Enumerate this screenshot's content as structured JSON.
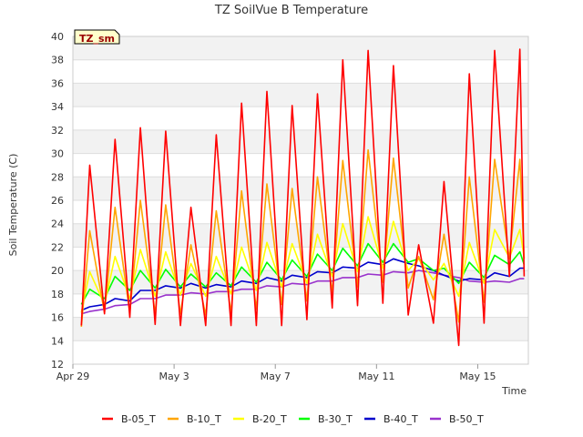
{
  "chart_data": {
    "type": "line",
    "title": "TZ SoilVue B Temperature",
    "xlabel": "Time",
    "ylabel": "Soil Temperature (C)",
    "badge": "TZ_sm",
    "ylim": [
      12,
      40
    ],
    "yticks": [
      12,
      14,
      16,
      18,
      20,
      22,
      24,
      26,
      28,
      30,
      32,
      34,
      36,
      38,
      40
    ],
    "xlim": [
      "2024-04-29",
      "2024-05-17"
    ],
    "xticks": [
      {
        "date": "2024-04-29",
        "label": "Apr 29"
      },
      {
        "date": "2024-05-03",
        "label": "May 3"
      },
      {
        "date": "2024-05-07",
        "label": "May 7"
      },
      {
        "date": "2024-05-11",
        "label": "May 11"
      },
      {
        "date": "2024-05-15",
        "label": "May 15"
      }
    ],
    "x": [
      "Apr 29 08:00",
      "Apr 29 16:00",
      "Apr 30 06:00",
      "Apr 30 16:00",
      "May 1 06:00",
      "May 1 16:00",
      "May 2 06:00",
      "May 2 16:00",
      "May 3 06:00",
      "May 3 16:00",
      "May 4 06:00",
      "May 4 16:00",
      "May 5 06:00",
      "May 5 16:00",
      "May 6 06:00",
      "May 6 16:00",
      "May 7 06:00",
      "May 7 16:00",
      "May 8 06:00",
      "May 8 16:00",
      "May 9 06:00",
      "May 9 16:00",
      "May 10 06:00",
      "May 10 16:00",
      "May 11 06:00",
      "May 11 16:00",
      "May 12 06:00",
      "May 12 16:00",
      "May 13 06:00",
      "May 13 16:00",
      "May 14 06:00",
      "May 14 16:00",
      "May 15 06:00",
      "May 15 16:00",
      "May 16 06:00",
      "May 16 16:00",
      "May 16 20:00"
    ],
    "series": [
      {
        "name": "B-05_T",
        "color": "#ff0000",
        "values": [
          15.3,
          29.0,
          16.3,
          31.2,
          16.0,
          32.2,
          15.4,
          31.9,
          15.3,
          25.4,
          15.3,
          31.6,
          15.3,
          34.3,
          15.3,
          35.3,
          15.3,
          34.1,
          15.8,
          35.1,
          16.8,
          38.0,
          17.0,
          38.8,
          17.2,
          37.5,
          16.2,
          22.2,
          15.5,
          27.6,
          13.6,
          36.8,
          15.5,
          38.8,
          19.5,
          38.9,
          19.5
        ]
      },
      {
        "name": "B-10_T",
        "color": "#ffa500",
        "values": [
          15.2,
          23.4,
          16.4,
          25.4,
          16.4,
          26.0,
          16.3,
          25.6,
          16.3,
          22.2,
          16.2,
          25.1,
          16.4,
          26.8,
          16.7,
          27.4,
          17.1,
          27.0,
          17.4,
          28.0,
          18.1,
          29.4,
          18.6,
          30.3,
          19.0,
          29.6,
          18.5,
          21.2,
          17.5,
          23.1,
          15.6,
          28.0,
          17.3,
          29.5,
          21.0,
          29.5,
          21.0
        ]
      },
      {
        "name": "B-20_T",
        "color": "#ffff00",
        "values": [
          16.4,
          19.9,
          17.1,
          21.2,
          17.6,
          21.8,
          17.8,
          21.6,
          17.9,
          20.6,
          17.8,
          21.2,
          18.0,
          22.0,
          18.3,
          22.4,
          18.6,
          22.3,
          18.9,
          23.1,
          19.5,
          24.0,
          19.9,
          24.6,
          20.2,
          24.2,
          20.0,
          21.0,
          19.2,
          20.6,
          17.8,
          22.4,
          18.9,
          23.5,
          21.1,
          23.5,
          21.1
        ]
      },
      {
        "name": "B-30_T",
        "color": "#00ff00",
        "values": [
          17.1,
          18.4,
          17.6,
          19.5,
          18.3,
          20.0,
          18.5,
          20.1,
          18.6,
          19.7,
          18.6,
          19.8,
          18.7,
          20.3,
          19.0,
          20.7,
          19.2,
          20.9,
          19.5,
          21.4,
          20.0,
          21.9,
          20.4,
          22.3,
          20.7,
          22.3,
          20.7,
          21.0,
          20.0,
          20.2,
          18.9,
          20.7,
          19.4,
          21.3,
          20.5,
          21.6,
          20.5
        ]
      },
      {
        "name": "B-40_T",
        "color": "#0000cc",
        "values": [
          16.6,
          16.9,
          17.1,
          17.6,
          17.4,
          18.3,
          18.3,
          18.7,
          18.5,
          18.9,
          18.5,
          18.8,
          18.6,
          19.1,
          18.9,
          19.4,
          19.1,
          19.6,
          19.4,
          19.9,
          19.8,
          20.3,
          20.2,
          20.7,
          20.5,
          21.0,
          20.6,
          20.4,
          20.0,
          19.6,
          19.1,
          19.3,
          19.2,
          19.8,
          19.5,
          20.2,
          20.2
        ]
      },
      {
        "name": "B-50_T",
        "color": "#9932cc",
        "values": [
          16.3,
          16.5,
          16.7,
          17.0,
          17.1,
          17.6,
          17.6,
          17.9,
          17.9,
          18.1,
          18.0,
          18.2,
          18.2,
          18.4,
          18.4,
          18.7,
          18.6,
          18.9,
          18.8,
          19.1,
          19.1,
          19.4,
          19.4,
          19.7,
          19.6,
          19.9,
          19.8,
          20.0,
          19.8,
          19.6,
          19.4,
          19.1,
          19.0,
          19.1,
          19.0,
          19.3,
          19.3
        ]
      }
    ],
    "grid": true,
    "legend_placement": "bottom"
  }
}
